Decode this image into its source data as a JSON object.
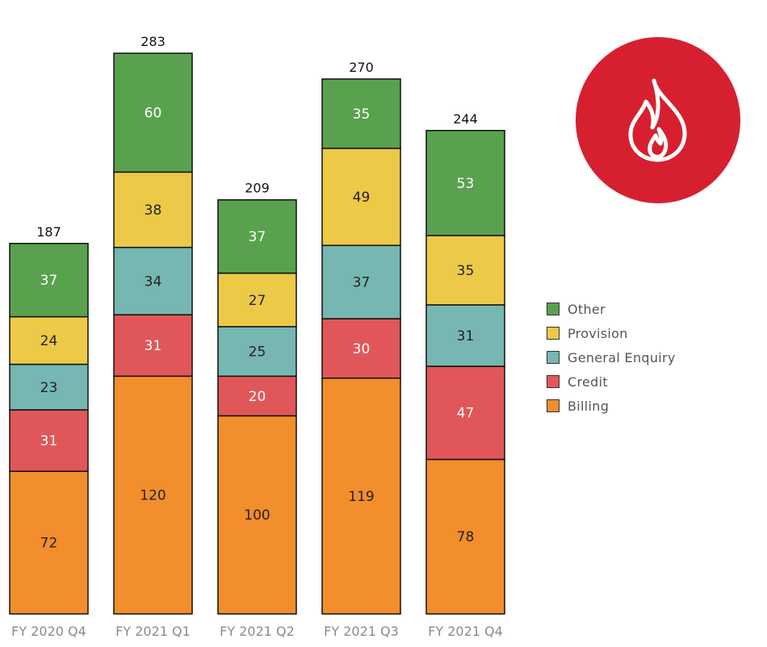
{
  "chart_data": {
    "type": "bar",
    "stacked": true,
    "categories": [
      "FY 2020 Q4",
      "FY 2021 Q1",
      "FY 2021 Q2",
      "FY 2021 Q3",
      "FY 2021 Q4"
    ],
    "totals": [
      "187",
      "283",
      "209",
      "270",
      "244"
    ],
    "series": [
      {
        "name": "Billing",
        "color": "#f28e2b",
        "text_color": "#222222",
        "values": [
          72,
          120,
          100,
          119,
          78
        ]
      },
      {
        "name": "Credit",
        "color": "#e15759",
        "text_color": "#ffffff",
        "values": [
          31,
          31,
          20,
          30,
          47
        ]
      },
      {
        "name": "General Enquiry",
        "color": "#76b7b2",
        "text_color": "#222222",
        "values": [
          23,
          34,
          25,
          37,
          31
        ]
      },
      {
        "name": "Provision",
        "color": "#edc948",
        "text_color": "#222222",
        "values": [
          24,
          38,
          27,
          49,
          35
        ]
      },
      {
        "name": "Other",
        "color": "#59a14f",
        "text_color": "#ffffff",
        "values": [
          37,
          60,
          37,
          35,
          53
        ]
      }
    ],
    "ylim": [
      0,
      283
    ],
    "grid": false,
    "legend_position": "right",
    "legend_order": [
      "Other",
      "Provision",
      "General Enquiry",
      "Credit",
      "Billing"
    ]
  },
  "badge": {
    "icon": "flame-icon",
    "color": "#d62030",
    "icon_color": "#ffffff"
  }
}
